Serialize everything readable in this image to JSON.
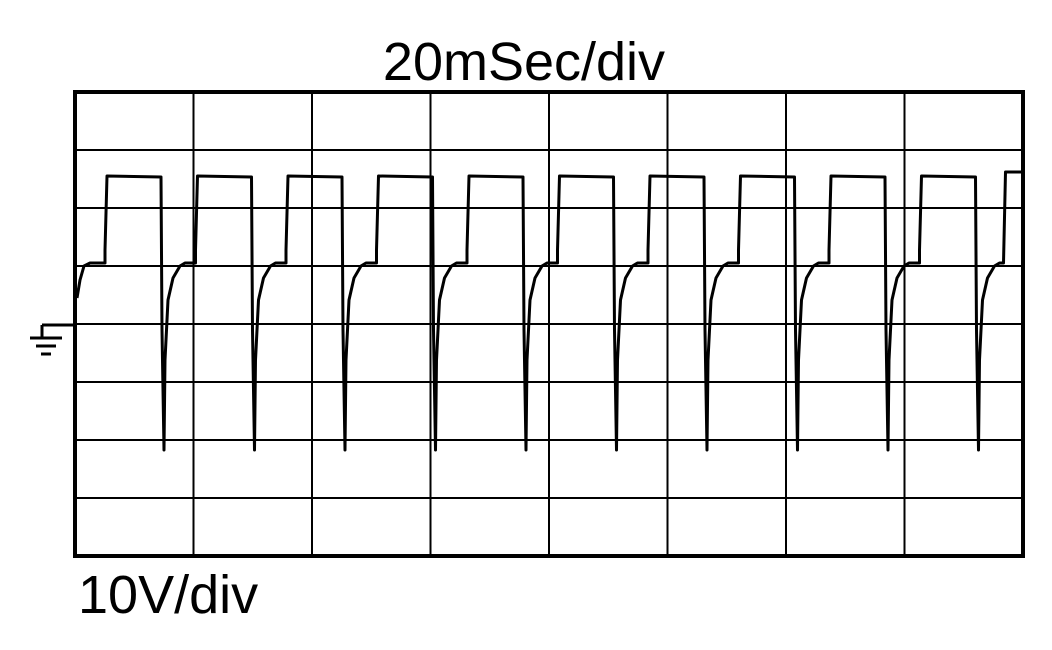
{
  "header": {
    "title": "20mSec/div"
  },
  "footer": {
    "label": "10V/div"
  }
}
